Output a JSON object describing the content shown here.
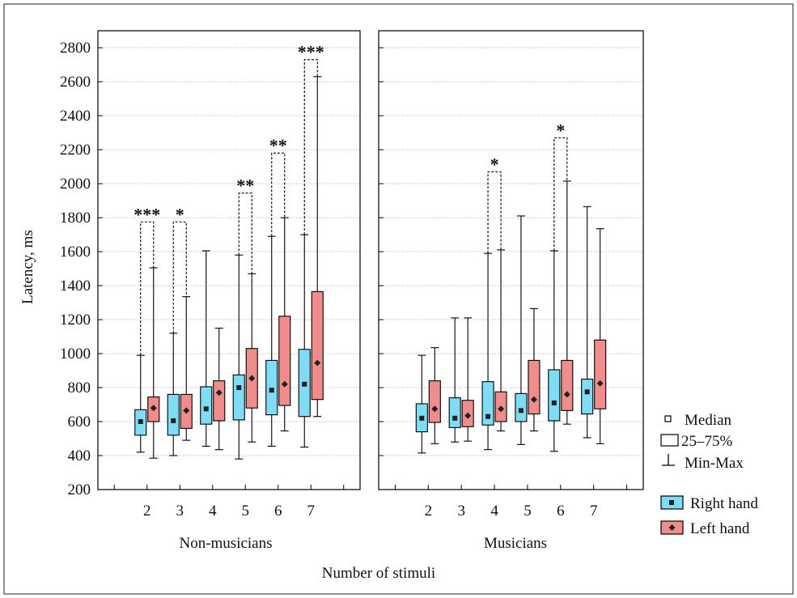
{
  "figure": {
    "ylabel": "Latency, ms",
    "xlabel": "Number of stimuli"
  },
  "legend": {
    "median_label": "Median",
    "box_label": "25–75%",
    "range_label": "Min-Max",
    "right_label": "Right hand",
    "left_label": "Left hand"
  },
  "colors": {
    "right": "#7fdcf4",
    "left": "#f08c8c",
    "border": "#000000",
    "grid": "#bdbdbd"
  },
  "chart_data": {
    "type": "box",
    "ylim": [
      200,
      2900
    ],
    "yticks": [
      200,
      400,
      600,
      800,
      1000,
      1200,
      1400,
      1600,
      1800,
      2000,
      2200,
      2400,
      2600,
      2800
    ],
    "categories": [
      "2",
      "3",
      "4",
      "5",
      "6",
      "7"
    ],
    "grid": true,
    "legend_position": "right",
    "panels": [
      {
        "name": "Non-musicians",
        "series": [
          {
            "name": "Right hand",
            "min": [
              420,
              400,
              455,
              380,
              455,
              450
            ],
            "q1": [
              520,
              520,
              585,
              610,
              640,
              630
            ],
            "median": [
              600,
              605,
              675,
              800,
              785,
              820
            ],
            "q3": [
              670,
              760,
              805,
              875,
              960,
              1025
            ],
            "max": [
              990,
              1120,
              1605,
              1580,
              1690,
              1700
            ]
          },
          {
            "name": "Left hand",
            "min": [
              385,
              490,
              435,
              480,
              545,
              630
            ],
            "q1": [
              600,
              560,
              605,
              680,
              695,
              730
            ],
            "median": [
              680,
              665,
              770,
              855,
              820,
              945
            ],
            "q3": [
              745,
              760,
              840,
              1030,
              1220,
              1365
            ],
            "max": [
              1505,
              1335,
              1150,
              1470,
              1800,
              2630
            ]
          }
        ],
        "significance": [
          {
            "category": "2",
            "label": "***",
            "top": 1775
          },
          {
            "category": "3",
            "label": "*",
            "top": 1775
          },
          {
            "category": "5",
            "label": "**",
            "top": 1945
          },
          {
            "category": "6",
            "label": "**",
            "top": 2180
          },
          {
            "category": "7",
            "label": "***",
            "top": 2730
          }
        ]
      },
      {
        "name": "Musicians",
        "series": [
          {
            "name": "Right hand",
            "min": [
              415,
              480,
              435,
              465,
              425,
              505
            ],
            "q1": [
              540,
              565,
              580,
              600,
              605,
              645
            ],
            "median": [
              620,
              620,
              630,
              665,
              710,
              775
            ],
            "q3": [
              705,
              740,
              835,
              765,
              905,
              850
            ],
            "max": [
              990,
              1210,
              1590,
              1810,
              1605,
              1865
            ]
          },
          {
            "name": "Left hand",
            "min": [
              470,
              485,
              545,
              545,
              585,
              470
            ],
            "q1": [
              595,
              570,
              600,
              645,
              665,
              675
            ],
            "median": [
              675,
              635,
              675,
              730,
              760,
              825
            ],
            "q3": [
              840,
              725,
              775,
              960,
              960,
              1080
            ],
            "max": [
              1035,
              1210,
              1610,
              1265,
              2015,
              1735
            ]
          }
        ],
        "significance": [
          {
            "category": "4",
            "label": "*",
            "top": 2070
          },
          {
            "category": "6",
            "label": "*",
            "top": 2270
          }
        ]
      }
    ]
  }
}
